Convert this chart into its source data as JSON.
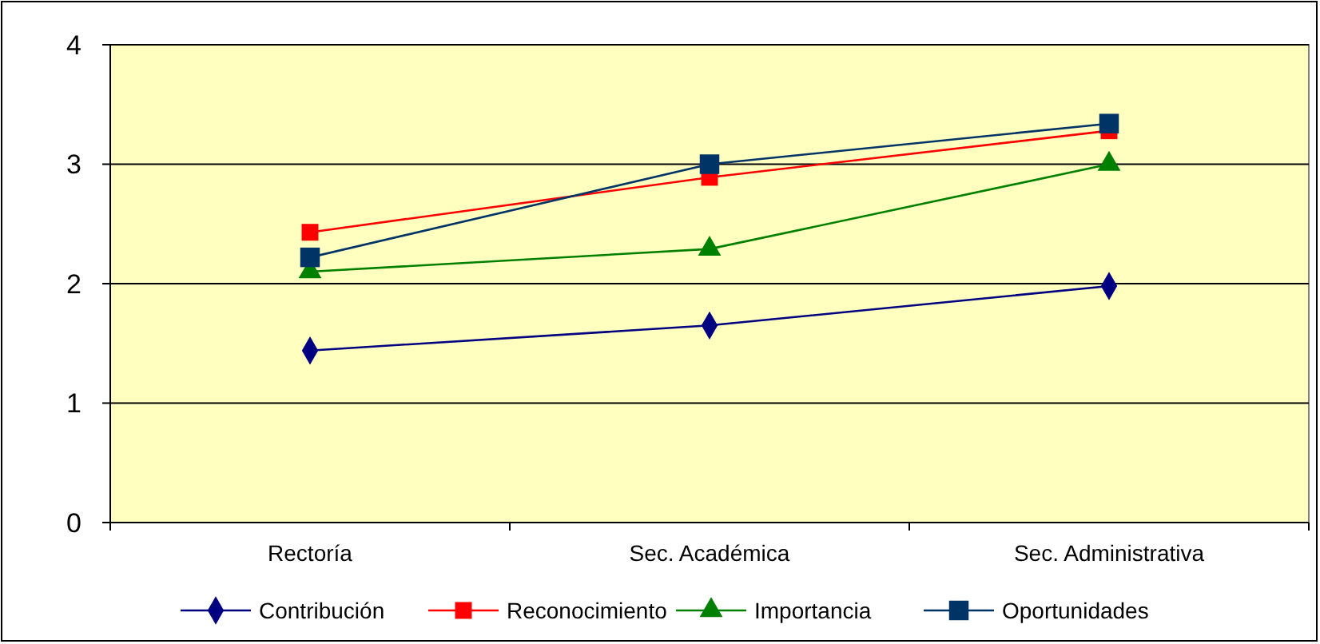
{
  "chart_data": {
    "type": "line",
    "categories": [
      "Rectoría",
      "Sec. Académica",
      "Sec. Administrativa"
    ],
    "ylim": [
      0,
      4
    ],
    "yticks": [
      0,
      1,
      2,
      3,
      4
    ],
    "grid": "y",
    "legend": "bottom",
    "series": [
      {
        "name": "Contribución",
        "color": "#000080",
        "marker": "diamond",
        "values": [
          1.44,
          1.65,
          1.98
        ]
      },
      {
        "name": "Reconocimiento",
        "color": "#ff0000",
        "marker": "square",
        "values": [
          2.43,
          2.89,
          3.28
        ]
      },
      {
        "name": "Importancia",
        "color": "#008000",
        "marker": "triangle",
        "values": [
          2.1,
          2.29,
          3.0
        ]
      },
      {
        "name": "Oportunidades",
        "color": "#003366",
        "marker": "square",
        "values": [
          2.22,
          3.0,
          3.34
        ]
      }
    ]
  }
}
